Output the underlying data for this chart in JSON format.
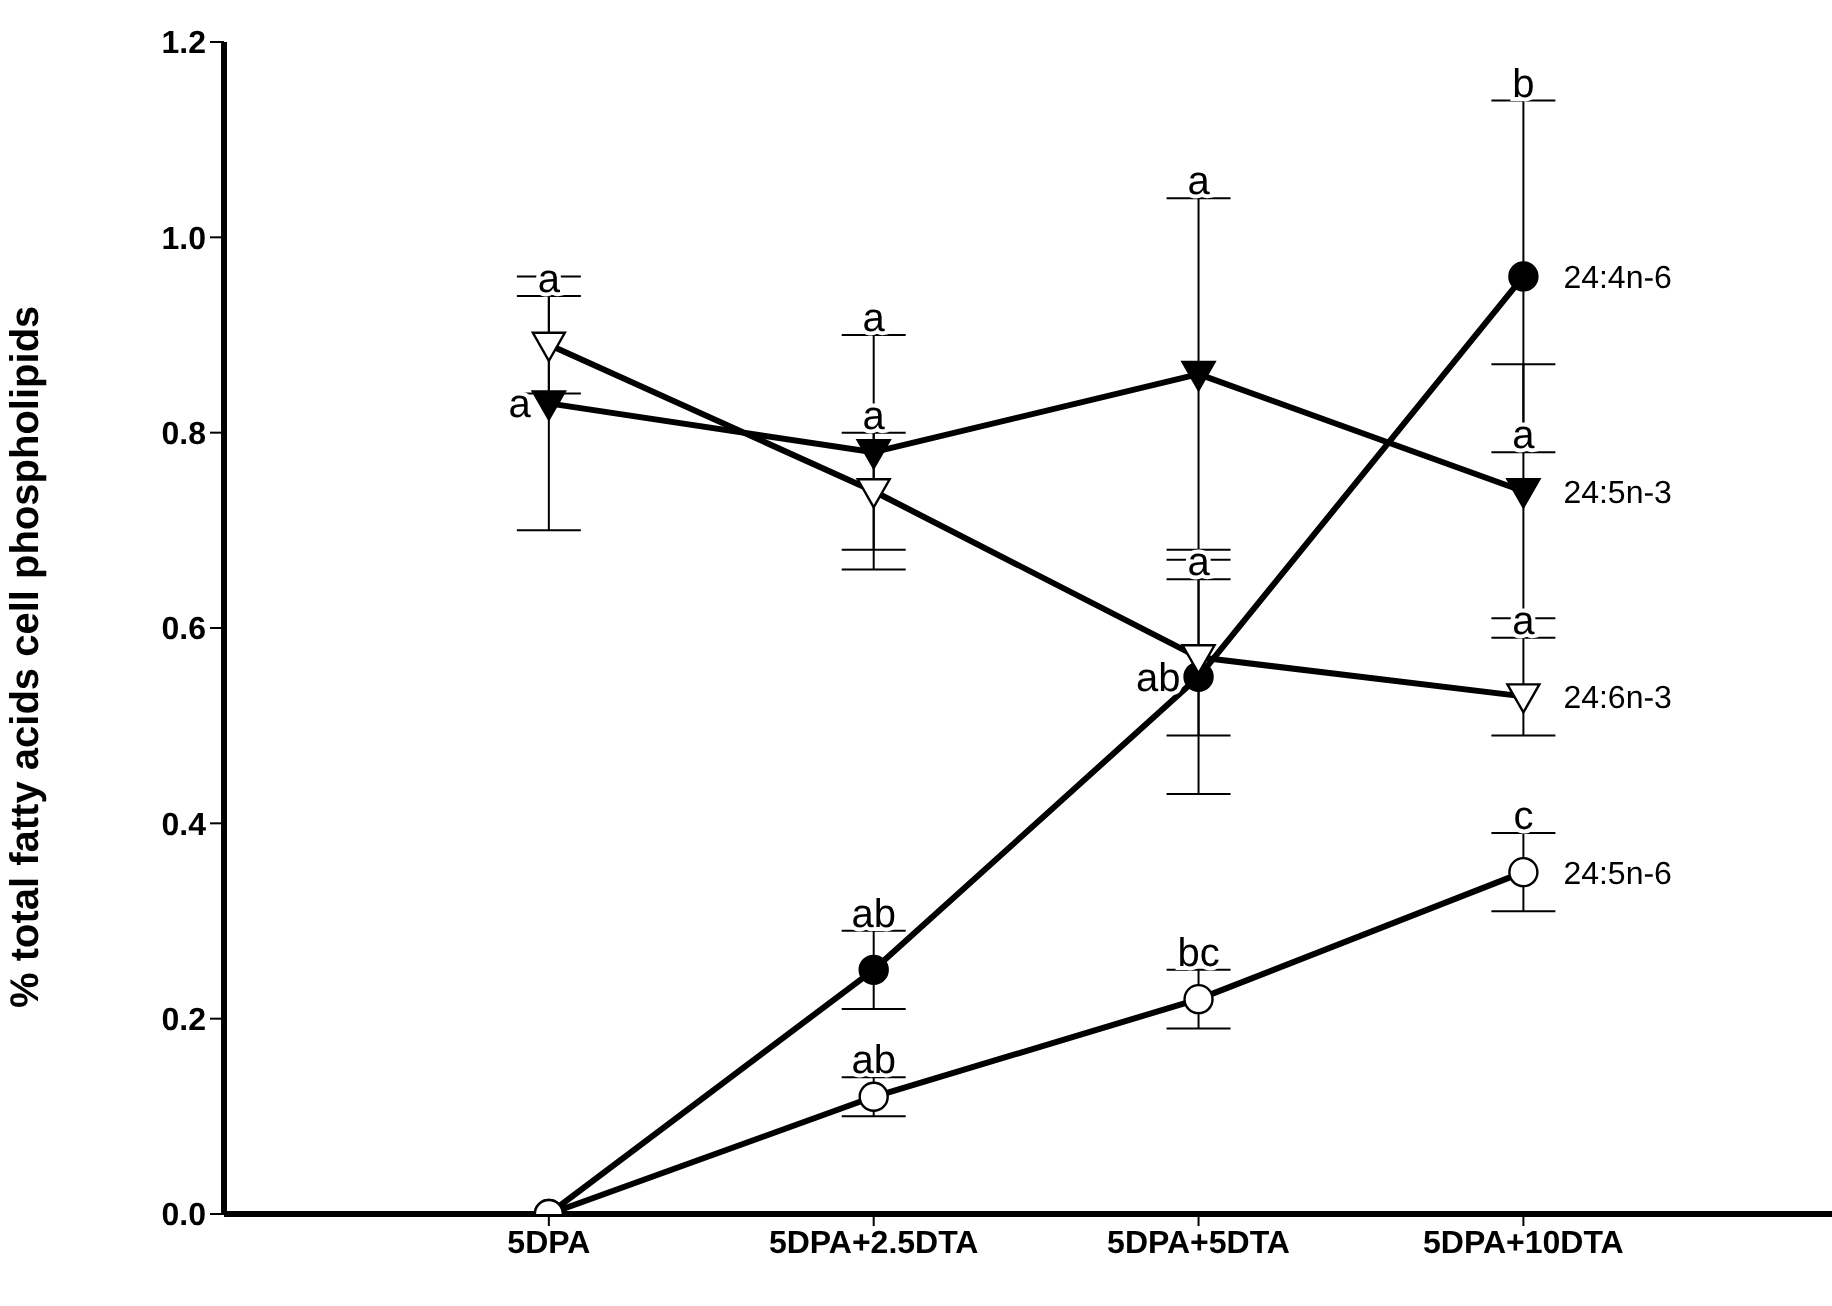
{
  "chart_data": {
    "type": "line",
    "ylabel": "% total fatty acids cell phospholipids",
    "categories": [
      "5DPA",
      "5DPA+2.5DTA",
      "5DPA+5DTA",
      "5DPA+10DTA"
    ],
    "ylim": [
      0,
      1.2
    ],
    "yticks": [
      {
        "value": 0,
        "label": "0.0"
      },
      {
        "value": 0.2,
        "label": "0.2"
      },
      {
        "value": 0.4,
        "label": "0.4"
      },
      {
        "value": 0.6,
        "label": "0.6"
      },
      {
        "value": 0.8,
        "label": "0.8"
      },
      {
        "value": 1,
        "label": "1.0"
      },
      {
        "value": 1.2,
        "label": "1.2"
      }
    ],
    "line_style": "solid",
    "grid": false,
    "legend": false,
    "series": [
      {
        "name": "24:4n-6",
        "color": "#000000",
        "marker": "circle",
        "values": [
          0,
          0.25,
          0.55,
          0.96
        ],
        "errors": [
          null,
          0.04,
          0.12,
          0.18
        ]
      },
      {
        "name": "24:5n-3",
        "color": "#000000",
        "marker": "triangle",
        "values": [
          0.83,
          0.78,
          0.86,
          0.74
        ],
        "errors": [
          0.13,
          0.12,
          0.18,
          0.13
        ]
      },
      {
        "name": "24:6n-3",
        "color": "#000000",
        "marker": "triangle",
        "values": [
          0.89,
          0.74,
          0.57,
          0.53
        ],
        "errors": [
          0.05,
          0.06,
          0.08,
          [
            0.49,
            0.59
          ]
        ]
      },
      {
        "name": "24:5n-6",
        "color": "#000000",
        "marker": "circle",
        "values": [
          0,
          0.12,
          0.22,
          0.35
        ],
        "errors": [
          null,
          0.02,
          0.03,
          0.04
        ]
      }
    ],
    "annotations": [
      {
        "text": "a",
        "x": "5DPA",
        "y": 0.94
      },
      {
        "text": "a",
        "x": "5DPA",
        "y": 0.83
      },
      {
        "text": "a",
        "x": "5DPA+2.5DTA",
        "y": 0.9
      },
      {
        "text": "a",
        "x": "5DPA+2.5DTA",
        "y": 0.8
      },
      {
        "text": "ab",
        "x": "5DPA+2.5DTA",
        "y": 0.29
      },
      {
        "text": "ab",
        "x": "5DPA+2.5DTA",
        "y": 0.14
      },
      {
        "text": "a",
        "x": "5DPA+5DTA",
        "y": 1.04
      },
      {
        "text": "a",
        "x": "5DPA+5DTA",
        "y": 0.65
      },
      {
        "text": "ab",
        "x": "5DPA+5DTA",
        "y": 0.55
      },
      {
        "text": "bc",
        "x": "5DPA+5DTA",
        "y": 0.25
      },
      {
        "text": "b",
        "x": "5DPA+10DTA",
        "y": 1.14
      },
      {
        "text": "a",
        "x": "5DPA+10DTA",
        "y": 0.78
      },
      {
        "text": "a",
        "x": "5DPA+10DTA",
        "y": 0.59
      },
      {
        "text": "c",
        "x": "5DPA+10DTA",
        "y": 0.39
      }
    ]
  }
}
